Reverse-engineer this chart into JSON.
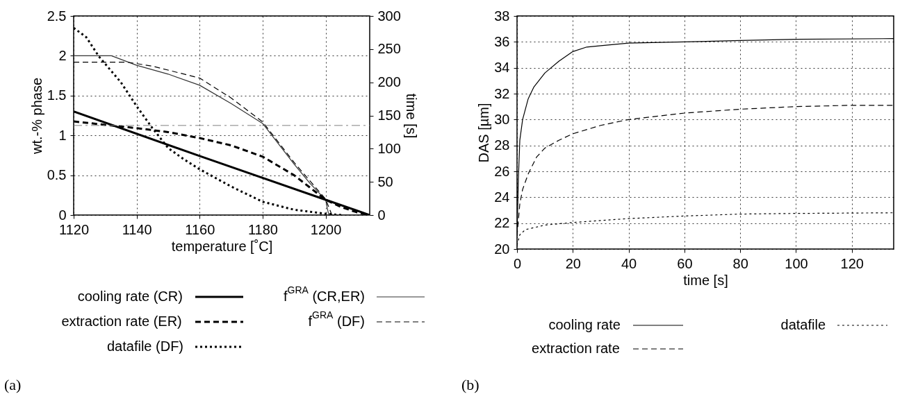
{
  "chart_data": [
    {
      "type": "line",
      "xlabel": "temperature [˚C]",
      "ylabel": "wt.-% phase",
      "y2label": "time [s]",
      "xlim": [
        1120,
        1214
      ],
      "xticks": [
        1120,
        1140,
        1160,
        1180,
        1200
      ],
      "ylim": [
        0,
        2.5
      ],
      "yticks": [
        0,
        0.5,
        1,
        1.5,
        2,
        2.5
      ],
      "y2lim": [
        0,
        300
      ],
      "y2ticks": [
        0,
        50,
        100,
        150,
        200,
        250,
        300
      ],
      "grid": true,
      "legend": "bottom",
      "series": [
        {
          "name": "cooling rate (CR)",
          "color": "#000000",
          "axis": "y2",
          "line_style": "solid",
          "x": [
            1120,
            1160,
            1200,
            1214
          ],
          "values": [
            156,
            89,
            23,
            0
          ]
        },
        {
          "name": "extraction rate (ER)",
          "color": "#000000",
          "axis": "y2",
          "line_style": "dashed",
          "x": [
            1120,
            1130,
            1140,
            1150,
            1160,
            1170,
            1180,
            1190,
            1200,
            1205,
            1210,
            1214
          ],
          "values": [
            141,
            136,
            131,
            125,
            116,
            105,
            88,
            60,
            23,
            12,
            4,
            0
          ]
        },
        {
          "name": "datafile (DF)",
          "color": "#000000",
          "axis": "y2",
          "line_style": "dotted",
          "x": [
            1120,
            1124,
            1128,
            1135,
            1140,
            1145,
            1150,
            1155,
            1160,
            1170,
            1180,
            1190,
            1200,
            1205
          ],
          "values": [
            282,
            268,
            239,
            200,
            164,
            131,
            101,
            84,
            69,
            43,
            20,
            8,
            2,
            0
          ]
        },
        {
          "name": "f$^{GRA}$ (CR,ER)",
          "color": "#333333",
          "line_style": "solid",
          "x": [
            1120,
            1132,
            1140,
            1150,
            1160,
            1170,
            1180,
            1190,
            1195,
            1200,
            1201
          ],
          "values": [
            2.0,
            2.0,
            1.88,
            1.77,
            1.63,
            1.4,
            1.15,
            0.64,
            0.4,
            0.19,
            0
          ]
        },
        {
          "name": "f$^{GRA}$ (DF)",
          "color": "#000000",
          "line_style": "dashed",
          "x": [
            1120,
            1137,
            1145,
            1160,
            1170,
            1180,
            1190,
            1200,
            1202
          ],
          "values": [
            1.92,
            1.92,
            1.87,
            1.72,
            1.47,
            1.17,
            0.66,
            0.2,
            0
          ]
        }
      ],
      "ref_lines": [
        {
          "axis": "y2",
          "value": 135,
          "color": "#808080",
          "line_style": "dashed"
        }
      ],
      "annotations": [
        "(a)"
      ]
    },
    {
      "type": "line",
      "xlabel": "time [s]",
      "ylabel": "DAS [µm]",
      "xlim": [
        0,
        135
      ],
      "xticks": [
        0,
        20,
        40,
        60,
        80,
        100,
        120
      ],
      "ylim": [
        20,
        38
      ],
      "yticks": [
        20,
        22,
        24,
        26,
        28,
        30,
        32,
        34,
        36,
        38
      ],
      "grid": true,
      "legend": "bottom",
      "series": [
        {
          "name": "cooling rate",
          "color": "#000000",
          "line_style": "solid",
          "x": [
            0,
            0.5,
            1,
            2,
            4,
            6,
            10,
            15,
            20,
            25,
            30,
            40,
            60,
            80,
            100,
            135
          ],
          "values": [
            21,
            25.5,
            28.4,
            30,
            31.6,
            32.5,
            33.6,
            34.5,
            35.25,
            35.6,
            35.7,
            35.9,
            36.0,
            36.1,
            36.2,
            36.25
          ]
        },
        {
          "name": "extraction rate",
          "color": "#000000",
          "line_style": "dashed",
          "x": [
            0,
            1,
            2,
            4,
            7,
            10,
            15,
            20,
            30,
            40,
            60,
            80,
            100,
            120,
            135
          ],
          "values": [
            21,
            23.5,
            24.6,
            25.8,
            27.1,
            27.8,
            28.4,
            28.9,
            29.55,
            30.0,
            30.5,
            30.8,
            31.0,
            31.1,
            31.1
          ]
        },
        {
          "name": "datafile",
          "color": "#000000",
          "line_style": "dotted",
          "x": [
            0,
            1,
            3,
            10,
            20,
            40,
            60,
            80,
            100,
            135
          ],
          "values": [
            20.3,
            21.1,
            21.5,
            21.85,
            22.05,
            22.35,
            22.55,
            22.7,
            22.75,
            22.8
          ]
        }
      ],
      "annotations": [
        "(b)"
      ]
    }
  ]
}
